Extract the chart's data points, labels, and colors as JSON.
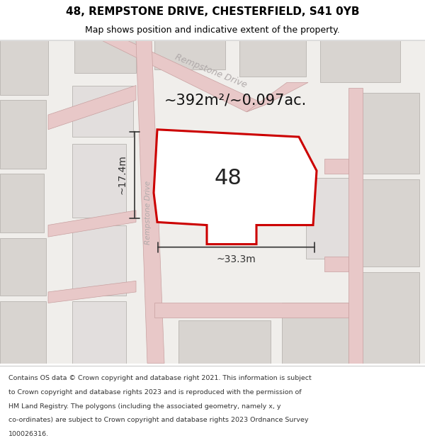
{
  "title": "48, REMPSTONE DRIVE, CHESTERFIELD, S41 0YB",
  "subtitle": "Map shows position and indicative extent of the property.",
  "footer_lines": [
    "Contains OS data © Crown copyright and database right 2021. This information is subject",
    "to Crown copyright and database rights 2023 and is reproduced with the permission of",
    "HM Land Registry. The polygons (including the associated geometry, namely x, y",
    "co-ordinates) are subject to Crown copyright and database rights 2023 Ordnance Survey",
    "100026316."
  ],
  "area_label": "~392m²/~0.097ac.",
  "width_label": "~33.3m",
  "height_label": "~17.4m",
  "number_label": "48",
  "map_bg": "#f0eeeb",
  "road_color": "#e8c8c8",
  "road_border_color": "#c8a0a0",
  "block_color": "#d8d4d0",
  "block_light_color": "#e2dedd",
  "property_fill": "#ffffff",
  "property_edge": "#cc0000",
  "road_label_color": "#b0aaaa",
  "dimension_color": "#333333",
  "title_fontsize": 11,
  "subtitle_fontsize": 9,
  "area_fontsize": 15,
  "number_fontsize": 22,
  "dim_fontsize": 10,
  "footer_fontsize": 6.8
}
